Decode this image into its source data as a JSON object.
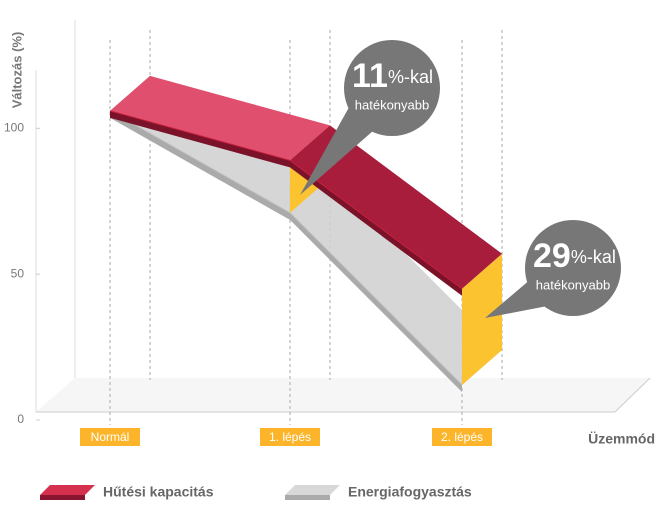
{
  "chart_data": {
    "type": "ribbon",
    "y_label": "Változás (%)",
    "x_label": "Üzemmód",
    "categories": [
      "Normál",
      "1. lépés",
      "2. lépés"
    ],
    "series": [
      {
        "name": "Hűtési kapacitás",
        "color": "#c8203f",
        "values": [
          106,
          89,
          45
        ]
      },
      {
        "name": "Energiafogyasztás",
        "color": "#cfcfcf",
        "values": [
          106,
          71,
          12
        ]
      }
    ],
    "ylim": [
      0,
      120
    ],
    "yticks": [
      0,
      50,
      100
    ],
    "annotations": [
      {
        "value": 11,
        "suffix": "%-kal",
        "note": "hatékonyabb"
      },
      {
        "value": 29,
        "suffix": "%-kal",
        "note": "hatékonyabb"
      }
    ],
    "difference_color": "#fcc331"
  }
}
